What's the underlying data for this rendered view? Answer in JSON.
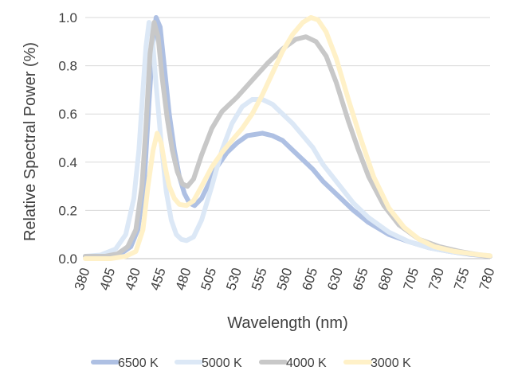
{
  "chart_data": {
    "type": "line",
    "xlabel": "Wavelength (nm)",
    "ylabel": "Relative Spectral Power (%)",
    "xlim": [
      380,
      780
    ],
    "ylim": [
      0,
      1.0
    ],
    "x_ticks": [
      380,
      405,
      430,
      455,
      480,
      505,
      530,
      555,
      580,
      605,
      630,
      655,
      680,
      705,
      730,
      755,
      780
    ],
    "y_ticks": [
      0.0,
      0.2,
      0.4,
      0.6,
      0.8,
      1.0
    ],
    "y_tick_labels": [
      "0.0",
      "0.2",
      "0.4",
      "0.6",
      "0.8",
      "1.0"
    ],
    "grid": "horizontal",
    "legend": "bottom",
    "series": [
      {
        "name": "6500 K",
        "color": "#aec0e3",
        "points": [
          [
            380,
            0.01
          ],
          [
            400,
            0.01
          ],
          [
            415,
            0.02
          ],
          [
            425,
            0.05
          ],
          [
            432,
            0.12
          ],
          [
            438,
            0.3
          ],
          [
            443,
            0.65
          ],
          [
            447,
            0.9
          ],
          [
            450,
            1.0
          ],
          [
            454,
            0.96
          ],
          [
            458,
            0.8
          ],
          [
            463,
            0.6
          ],
          [
            468,
            0.45
          ],
          [
            473,
            0.34
          ],
          [
            478,
            0.27
          ],
          [
            483,
            0.23
          ],
          [
            488,
            0.22
          ],
          [
            495,
            0.25
          ],
          [
            502,
            0.31
          ],
          [
            510,
            0.38
          ],
          [
            520,
            0.44
          ],
          [
            530,
            0.48
          ],
          [
            540,
            0.51
          ],
          [
            555,
            0.52
          ],
          [
            565,
            0.51
          ],
          [
            575,
            0.49
          ],
          [
            585,
            0.45
          ],
          [
            595,
            0.41
          ],
          [
            605,
            0.37
          ],
          [
            615,
            0.32
          ],
          [
            630,
            0.26
          ],
          [
            645,
            0.2
          ],
          [
            660,
            0.15
          ],
          [
            680,
            0.1
          ],
          [
            700,
            0.07
          ],
          [
            720,
            0.045
          ],
          [
            740,
            0.03
          ],
          [
            760,
            0.018
          ],
          [
            780,
            0.01
          ]
        ]
      },
      {
        "name": "5000 K",
        "color": "#dce8f6",
        "points": [
          [
            380,
            0.01
          ],
          [
            395,
            0.015
          ],
          [
            410,
            0.04
          ],
          [
            420,
            0.1
          ],
          [
            428,
            0.25
          ],
          [
            433,
            0.45
          ],
          [
            437,
            0.7
          ],
          [
            440,
            0.88
          ],
          [
            443,
            0.98
          ],
          [
            446,
            0.93
          ],
          [
            450,
            0.72
          ],
          [
            455,
            0.48
          ],
          [
            460,
            0.28
          ],
          [
            465,
            0.16
          ],
          [
            470,
            0.1
          ],
          [
            475,
            0.08
          ],
          [
            480,
            0.075
          ],
          [
            487,
            0.09
          ],
          [
            495,
            0.16
          ],
          [
            505,
            0.3
          ],
          [
            515,
            0.45
          ],
          [
            525,
            0.56
          ],
          [
            535,
            0.63
          ],
          [
            545,
            0.66
          ],
          [
            555,
            0.66
          ],
          [
            565,
            0.64
          ],
          [
            575,
            0.6
          ],
          [
            585,
            0.56
          ],
          [
            595,
            0.51
          ],
          [
            605,
            0.46
          ],
          [
            615,
            0.39
          ],
          [
            630,
            0.31
          ],
          [
            645,
            0.23
          ],
          [
            660,
            0.17
          ],
          [
            680,
            0.11
          ],
          [
            700,
            0.07
          ],
          [
            720,
            0.045
          ],
          [
            740,
            0.03
          ],
          [
            760,
            0.02
          ],
          [
            780,
            0.012
          ]
        ]
      },
      {
        "name": "4000 K",
        "color": "#c8c8c8",
        "points": [
          [
            380,
            0.01
          ],
          [
            400,
            0.01
          ],
          [
            412,
            0.02
          ],
          [
            422,
            0.05
          ],
          [
            430,
            0.12
          ],
          [
            436,
            0.3
          ],
          [
            440,
            0.55
          ],
          [
            444,
            0.85
          ],
          [
            448,
            0.98
          ],
          [
            452,
            0.92
          ],
          [
            456,
            0.75
          ],
          [
            461,
            0.58
          ],
          [
            466,
            0.45
          ],
          [
            471,
            0.36
          ],
          [
            476,
            0.31
          ],
          [
            481,
            0.3
          ],
          [
            487,
            0.33
          ],
          [
            495,
            0.43
          ],
          [
            505,
            0.54
          ],
          [
            515,
            0.61
          ],
          [
            530,
            0.67
          ],
          [
            545,
            0.74
          ],
          [
            560,
            0.81
          ],
          [
            575,
            0.87
          ],
          [
            588,
            0.91
          ],
          [
            598,
            0.92
          ],
          [
            608,
            0.9
          ],
          [
            618,
            0.84
          ],
          [
            628,
            0.73
          ],
          [
            640,
            0.57
          ],
          [
            650,
            0.45
          ],
          [
            660,
            0.34
          ],
          [
            675,
            0.22
          ],
          [
            690,
            0.14
          ],
          [
            710,
            0.08
          ],
          [
            730,
            0.05
          ],
          [
            750,
            0.03
          ],
          [
            770,
            0.015
          ],
          [
            780,
            0.01
          ]
        ]
      },
      {
        "name": "3000 K",
        "color": "#fff1c8",
        "points": [
          [
            380,
            0.0
          ],
          [
            405,
            0.0
          ],
          [
            420,
            0.01
          ],
          [
            430,
            0.03
          ],
          [
            437,
            0.12
          ],
          [
            442,
            0.3
          ],
          [
            447,
            0.45
          ],
          [
            451,
            0.52
          ],
          [
            455,
            0.48
          ],
          [
            459,
            0.38
          ],
          [
            463,
            0.3
          ],
          [
            468,
            0.25
          ],
          [
            473,
            0.225
          ],
          [
            480,
            0.22
          ],
          [
            487,
            0.24
          ],
          [
            495,
            0.3
          ],
          [
            505,
            0.38
          ],
          [
            515,
            0.44
          ],
          [
            525,
            0.49
          ],
          [
            535,
            0.54
          ],
          [
            545,
            0.6
          ],
          [
            555,
            0.68
          ],
          [
            565,
            0.77
          ],
          [
            575,
            0.86
          ],
          [
            585,
            0.93
          ],
          [
            595,
            0.98
          ],
          [
            603,
            1.0
          ],
          [
            610,
            0.99
          ],
          [
            618,
            0.94
          ],
          [
            628,
            0.83
          ],
          [
            640,
            0.66
          ],
          [
            652,
            0.5
          ],
          [
            665,
            0.34
          ],
          [
            680,
            0.21
          ],
          [
            695,
            0.13
          ],
          [
            710,
            0.08
          ],
          [
            725,
            0.05
          ],
          [
            745,
            0.03
          ],
          [
            765,
            0.018
          ],
          [
            780,
            0.012
          ]
        ]
      }
    ]
  }
}
